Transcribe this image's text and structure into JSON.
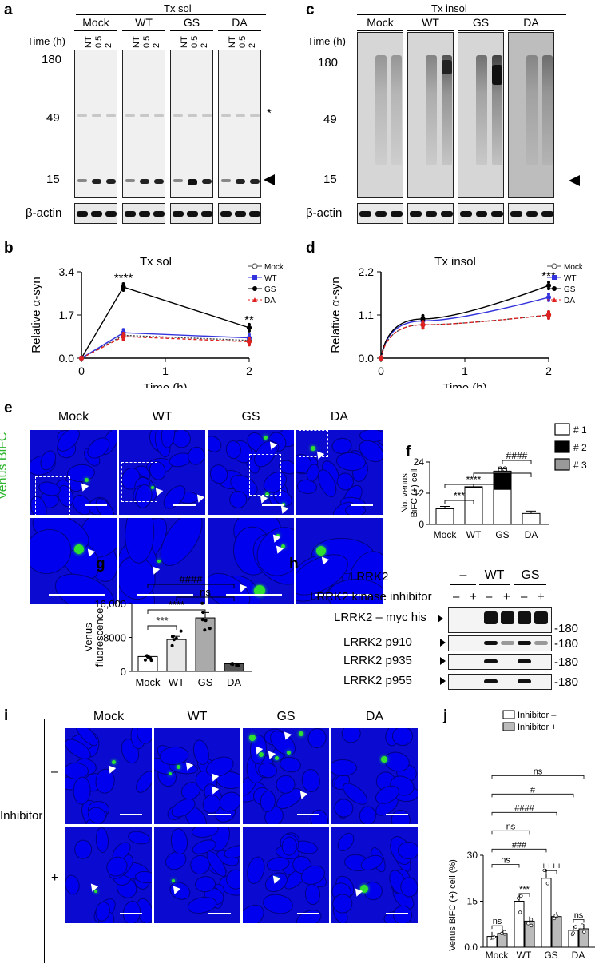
{
  "panels": {
    "a": {
      "label": "a",
      "title": "Tx sol",
      "groups": [
        "Mock",
        "WT",
        "GS",
        "DA"
      ],
      "time_label": "Time (h)",
      "lanes": [
        "NT",
        "0.5",
        "2"
      ],
      "mw": [
        "180",
        "49",
        "15"
      ],
      "star": "*",
      "actin": "β-actin"
    },
    "b": {
      "label": "b",
      "title": "Tx sol",
      "ylabel": "Relative α-syn",
      "xlabel": "Time (h)",
      "yticks": [
        "0.0",
        "1.7",
        "3.4"
      ],
      "xticks": [
        "0",
        "1",
        "2"
      ],
      "sig": [
        "****",
        "**"
      ],
      "legend": [
        "Mock",
        "WT",
        "GS",
        "DA"
      ]
    },
    "c": {
      "label": "c",
      "title": "Tx insol",
      "groups": [
        "Mock",
        "WT",
        "GS",
        "DA"
      ],
      "time_label": "Time (h)",
      "lanes": [
        "NT",
        "0.5",
        "2"
      ],
      "mw": [
        "180",
        "49",
        "15"
      ],
      "actin": "β-actin"
    },
    "d": {
      "label": "d",
      "title": "Tx insol",
      "ylabel": "Relative α-syn",
      "xlabel": "Time (h)",
      "yticks": [
        "0.0",
        "1.1",
        "2.2"
      ],
      "xticks": [
        "0",
        "1",
        "2"
      ],
      "sig": [
        "***"
      ],
      "legend": [
        "Mock",
        "WT",
        "GS",
        "DA"
      ]
    },
    "e": {
      "label": "e",
      "cols": [
        "Mock",
        "WT",
        "GS",
        "DA"
      ],
      "side": "Venus BiFC"
    },
    "f": {
      "label": "f",
      "ylabel": "No. venus BiFC (+) cell",
      "yticks": [
        "0",
        "12",
        "24"
      ],
      "categories": [
        "Mock",
        "WT",
        "GS",
        "DA"
      ],
      "sig": [
        "***",
        "****",
        "ns",
        "####"
      ],
      "legend": [
        "# 1",
        "# 2",
        "# 3"
      ]
    },
    "g": {
      "label": "g",
      "ylabel": "Venus fluorescence",
      "yticks": [
        "0",
        "8000",
        "16,000"
      ],
      "categories": [
        "Mock",
        "WT",
        "GS",
        "DA"
      ],
      "sig": [
        "***",
        "****",
        "ns",
        "####"
      ]
    },
    "h": {
      "label": "h",
      "row1": "LRRK2",
      "row1_groups": [
        "–",
        "WT",
        "GS"
      ],
      "row2": "LRRK2 kinase inhibitor",
      "row2_signs": [
        "–",
        "+",
        "–",
        "+",
        "–",
        "+"
      ],
      "blots": [
        {
          "name": "LRRK2 – myc his",
          "mw": "-180"
        },
        {
          "name": "LRRK2 p910",
          "mw": "-180"
        },
        {
          "name": "LRRK2 p935",
          "mw": "-180"
        },
        {
          "name": "LRRK2 p955",
          "mw": "-180"
        }
      ]
    },
    "i": {
      "label": "i",
      "cols": [
        "Mock",
        "WT",
        "GS",
        "DA"
      ],
      "side": "Inhibitor",
      "rows": [
        "–",
        "+"
      ]
    },
    "j": {
      "label": "j",
      "ylabel": "Venus BiFC (+) cell (%)",
      "yticks": [
        "0.0",
        "15",
        "30"
      ],
      "categories": [
        "Mock",
        "WT",
        "GS",
        "DA"
      ],
      "legend": [
        "Inhibitor –",
        "Inhibitor +"
      ],
      "sig": [
        "ns",
        "ns",
        "***",
        "++++",
        "ns",
        "###",
        "ns",
        "####",
        "#",
        "ns"
      ]
    }
  },
  "colors": {
    "mock": "#444444",
    "wt": "#3333dd",
    "gs": "#000000",
    "da": "#e02020",
    "cell_bg": "#0a0ad0",
    "venus": "#30e030"
  },
  "chart_data": [
    {
      "type": "line",
      "title": "Tx sol",
      "xlabel": "Time (h)",
      "ylabel": "Relative α-syn",
      "ylim": [
        0,
        3.4
      ],
      "xlim": [
        0,
        2
      ],
      "series": [
        {
          "name": "Mock",
          "x": [
            0,
            0.5,
            2
          ],
          "y": [
            0,
            0.9,
            0.7
          ]
        },
        {
          "name": "WT",
          "x": [
            0,
            0.5,
            2
          ],
          "y": [
            0,
            1.0,
            0.8
          ]
        },
        {
          "name": "GS",
          "x": [
            0,
            0.5,
            2
          ],
          "y": [
            0,
            2.8,
            1.2
          ]
        },
        {
          "name": "DA",
          "x": [
            0,
            0.5,
            2
          ],
          "y": [
            0,
            0.85,
            0.65
          ]
        }
      ]
    },
    {
      "type": "line",
      "title": "Tx insol",
      "xlabel": "Time (h)",
      "ylabel": "Relative α-syn",
      "ylim": [
        0,
        2.2
      ],
      "xlim": [
        0,
        2
      ],
      "series": [
        {
          "name": "Mock",
          "x": [
            0,
            0.5,
            2
          ],
          "y": [
            0,
            0.85,
            1.1
          ]
        },
        {
          "name": "WT",
          "x": [
            0,
            0.5,
            2
          ],
          "y": [
            0,
            0.95,
            1.55
          ]
        },
        {
          "name": "GS",
          "x": [
            0,
            0.5,
            2
          ],
          "y": [
            0,
            1.0,
            1.85
          ]
        },
        {
          "name": "DA",
          "x": [
            0,
            0.5,
            2
          ],
          "y": [
            0,
            0.85,
            1.1
          ]
        }
      ]
    },
    {
      "type": "bar",
      "ylabel": "No. venus BiFC (+) cell",
      "ylim": [
        0,
        24
      ],
      "categories": [
        "Mock",
        "WT",
        "GS",
        "DA"
      ],
      "series": [
        {
          "name": "# 1",
          "values": [
            6,
            14,
            13.5,
            4.2
          ]
        },
        {
          "name": "# 2",
          "values": [
            0,
            0.5,
            6,
            0
          ]
        },
        {
          "name": "# 3",
          "values": [
            0,
            0,
            1,
            0
          ]
        }
      ]
    },
    {
      "type": "bar",
      "ylabel": "Venus fluorescence",
      "ylim": [
        0,
        16000
      ],
      "categories": [
        "Mock",
        "WT",
        "GS",
        "DA"
      ],
      "values": [
        3500,
        7500,
        12600,
        1800
      ]
    },
    {
      "type": "bar",
      "ylabel": "Venus BiFC (+) cell (%)",
      "ylim": [
        0,
        30
      ],
      "categories": [
        "Mock",
        "WT",
        "GS",
        "DA"
      ],
      "series": [
        {
          "name": "Inhibitor –",
          "values": [
            3.5,
            15,
            22.5,
            5.5
          ]
        },
        {
          "name": "Inhibitor +",
          "values": [
            4.5,
            8.5,
            10,
            6
          ]
        }
      ]
    }
  ]
}
